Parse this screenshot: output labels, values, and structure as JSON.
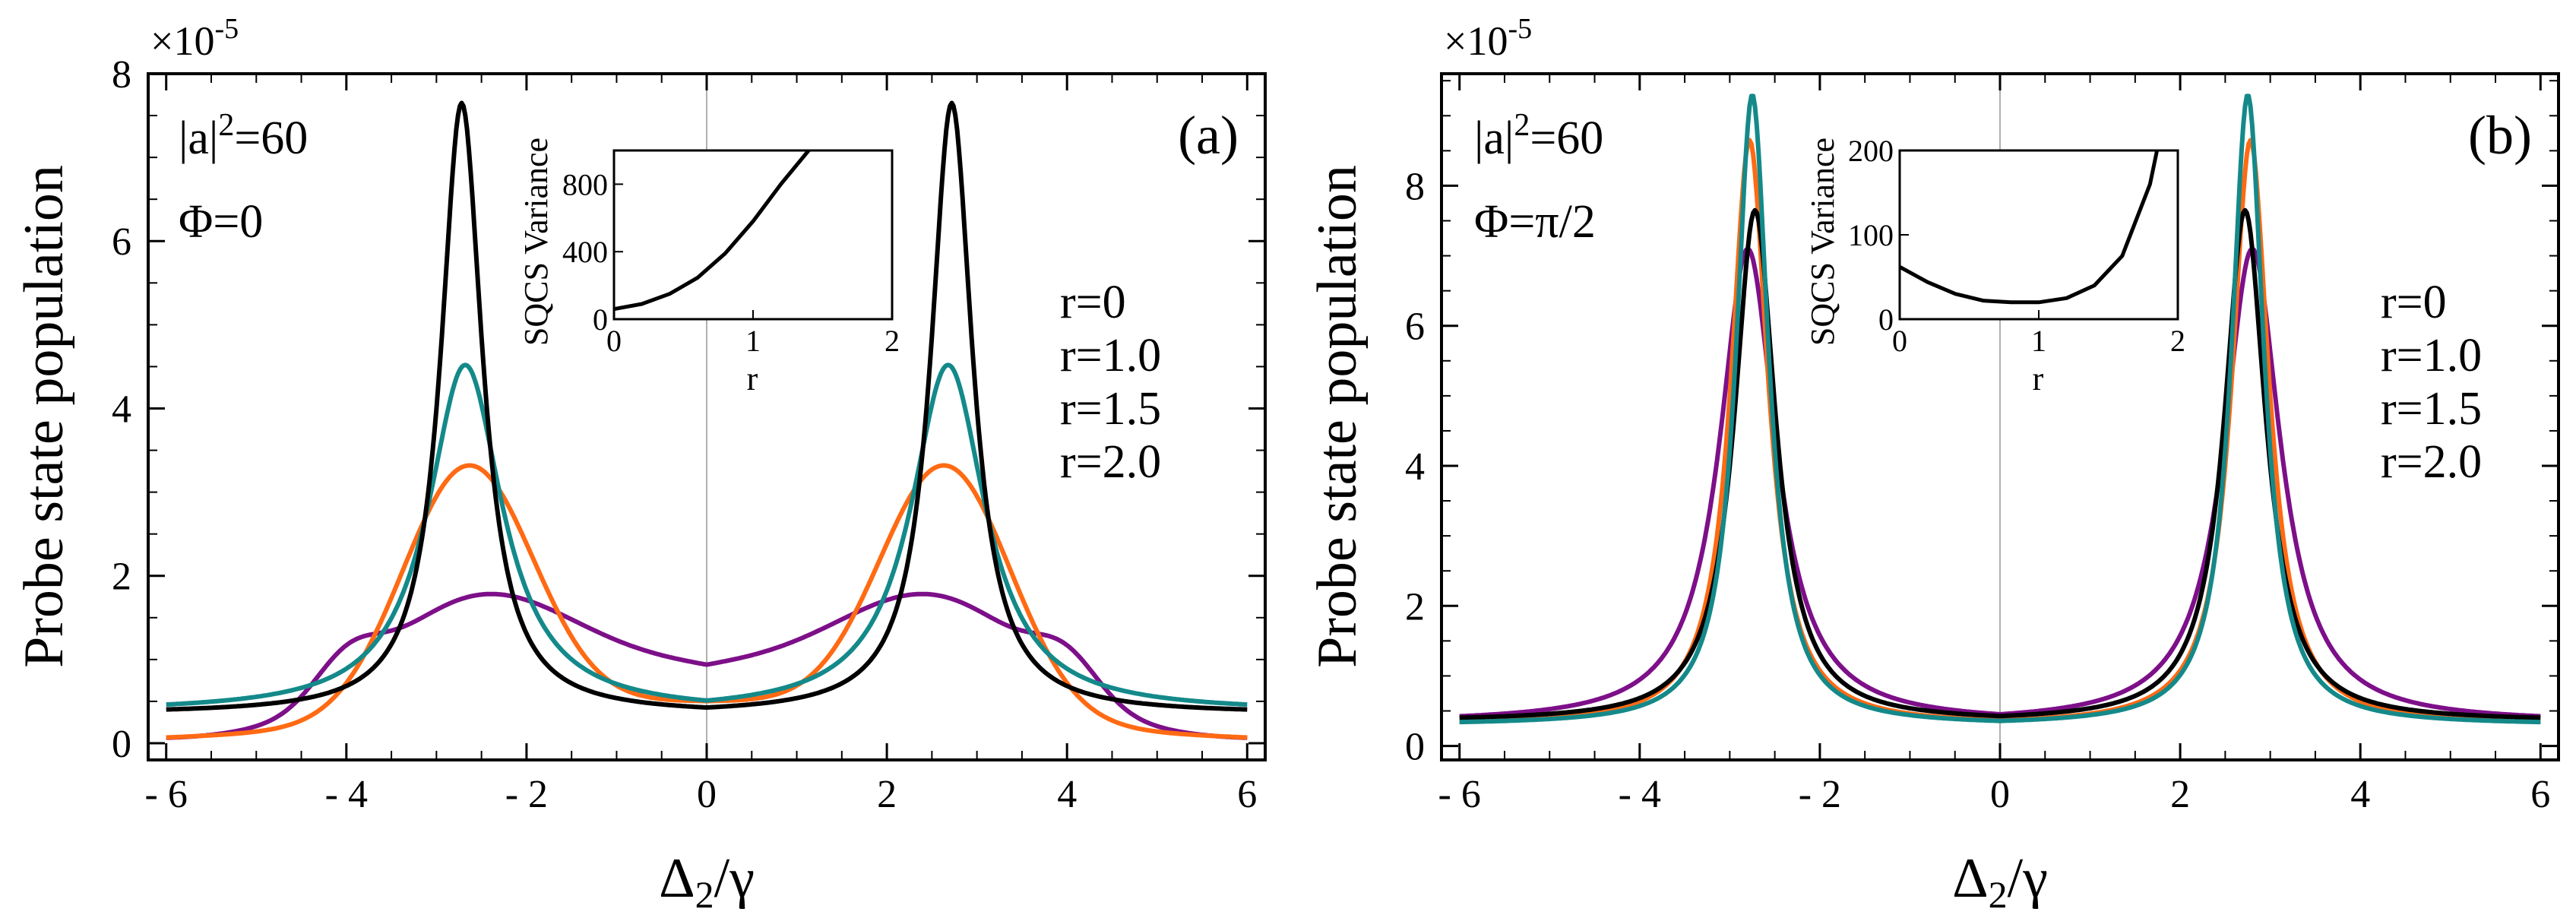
{
  "figure": {
    "panels": [
      {
        "id": "a",
        "panel_label": "(a)",
        "multiplier_base": "×10",
        "multiplier_exp": "-5",
        "xlabel_main": "Δ",
        "xlabel_sub": "2",
        "xlabel_tail": "/γ",
        "ylabel": "Probe state population",
        "annot_a_pre": "|a|",
        "annot_a_sup": "2",
        "annot_a_post": "=60",
        "annot_phi": "Φ=0",
        "inset": {
          "xlabel": "r",
          "ylabel": "SQCS Variance",
          "xticks": [
            "0",
            "1",
            "2"
          ],
          "yticks": [
            "0",
            "400",
            "800"
          ]
        }
      },
      {
        "id": "b",
        "panel_label": "(b)",
        "multiplier_base": "×10",
        "multiplier_exp": "-5",
        "xlabel_main": "Δ",
        "xlabel_sub": "2",
        "xlabel_tail": "/γ",
        "ylabel": "Probe state population",
        "annot_a_pre": "|a|",
        "annot_a_sup": "2",
        "annot_a_post": "=60",
        "annot_phi": "Φ=π/2",
        "inset": {
          "xlabel": "r",
          "ylabel": "SQCS Variance",
          "xticks": [
            "0",
            "1",
            "2"
          ],
          "yticks": [
            "0",
            "100",
            "200"
          ]
        }
      }
    ]
  },
  "colors": {
    "r0": "#000000",
    "r1": "#14898a",
    "r15": "#ff6a13",
    "r2": "#7d0f89",
    "zero_line": "#b0b0b0"
  },
  "chart_data": [
    {
      "type": "line",
      "title": "(a)",
      "xlabel": "Δ2/γ",
      "ylabel": "Probe state population",
      "xlim": [
        -6.2,
        6.2
      ],
      "ylim": [
        -0.2,
        8.0
      ],
      "xticks": [
        "- 6",
        "- 4",
        "- 2",
        "0",
        "2",
        "4",
        "6"
      ],
      "xtick_values": [
        -6,
        -4,
        -2,
        0,
        2,
        4,
        6
      ],
      "yticks": [
        "0",
        "2",
        "4",
        "6",
        "8"
      ],
      "ytick_values": [
        0,
        2,
        4,
        6,
        8
      ],
      "series": [
        {
          "name": "r=0",
          "color_key": "r0",
          "model": {
            "kind": "lorentz",
            "peak_x": 2.72,
            "peak_y": 7.65,
            "width": 0.28,
            "base": 0.35
          }
        },
        {
          "name": "r=1.0",
          "color_key": "r1",
          "model": {
            "kind": "lorentz",
            "peak_x": 2.68,
            "peak_y": 4.52,
            "width": 0.5,
            "base": 0.37
          }
        },
        {
          "name": "r=1.5",
          "color_key": "r15",
          "model": {
            "kind": "gauss_sum",
            "peak_x": 2.65,
            "peak_y": 3.13,
            "width": 0.72,
            "base": 0.5
          }
        },
        {
          "name": "r=2.0",
          "color_key": "r2",
          "model": {
            "kind": "broad",
            "peak_x": 2.6,
            "peak_y": 2.05,
            "width": 1.1,
            "base": 0.8
          }
        }
      ],
      "inset": {
        "type": "line",
        "xlabel": "r",
        "ylabel": "SQCS Variance",
        "xlim": [
          0,
          2
        ],
        "ylim": [
          0,
          1000
        ],
        "x": [
          0,
          0.2,
          0.4,
          0.6,
          0.8,
          1.0,
          1.2,
          1.4
        ],
        "y": [
          60,
          90,
          150,
          245,
          390,
          580,
          800,
          1000
        ]
      }
    },
    {
      "type": "line",
      "title": "(b)",
      "xlabel": "Δ2/γ",
      "ylabel": "Probe state population",
      "xlim": [
        -6.2,
        6.2
      ],
      "ylim": [
        -0.2,
        9.6
      ],
      "xticks": [
        "- 6",
        "- 4",
        "- 2",
        "0",
        "2",
        "4",
        "6"
      ],
      "xtick_values": [
        -6,
        -4,
        -2,
        0,
        2,
        4,
        6
      ],
      "yticks": [
        "0",
        "2",
        "4",
        "6",
        "8"
      ],
      "ytick_values": [
        0,
        2,
        4,
        6,
        8
      ],
      "series": [
        {
          "name": "r=0",
          "color_key": "r0",
          "model": {
            "kind": "lorentz",
            "peak_x": 2.72,
            "peak_y": 7.65,
            "width": 0.28,
            "base": 0.35
          }
        },
        {
          "name": "r=1.0",
          "color_key": "r1",
          "model": {
            "kind": "lorentz",
            "peak_x": 2.75,
            "peak_y": 9.3,
            "width": 0.22,
            "base": 0.3
          }
        },
        {
          "name": "r=1.5",
          "color_key": "r15",
          "model": {
            "kind": "lorentz",
            "peak_x": 2.78,
            "peak_y": 8.65,
            "width": 0.25,
            "base": 0.3
          }
        },
        {
          "name": "r=2.0",
          "color_key": "r2",
          "model": {
            "kind": "lorentz",
            "peak_x": 2.8,
            "peak_y": 7.1,
            "width": 0.38,
            "base": 0.33
          }
        }
      ],
      "inset": {
        "type": "line",
        "xlabel": "r",
        "ylabel": "SQCS Variance",
        "xlim": [
          0,
          2
        ],
        "ylim": [
          0,
          200
        ],
        "x": [
          0,
          0.2,
          0.4,
          0.6,
          0.8,
          1.0,
          1.2,
          1.4,
          1.6,
          1.8,
          1.85
        ],
        "y": [
          62,
          44,
          30,
          22,
          20,
          20,
          25,
          40,
          75,
          160,
          200
        ]
      }
    }
  ],
  "legend": {
    "items": [
      {
        "label": "r=0",
        "color_key": "r0"
      },
      {
        "label": "r=1.0",
        "color_key": "r1"
      },
      {
        "label": "r=1.5",
        "color_key": "r15"
      },
      {
        "label": "r=2.0",
        "color_key": "r2"
      }
    ]
  }
}
